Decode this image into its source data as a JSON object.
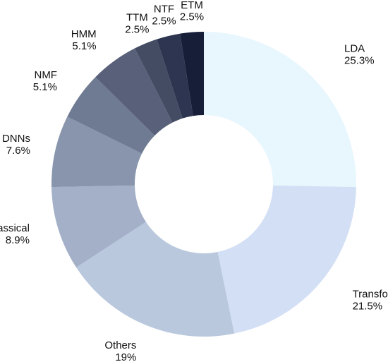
{
  "chart_data": {
    "type": "pie",
    "donut": true,
    "slices": [
      {
        "label": "LDA",
        "pct_text": "25.3%",
        "value": 25.3,
        "color": "#e8f6fd"
      },
      {
        "label": "Transformer",
        "pct_text": "21.5%",
        "value": 21.5,
        "color": "#d2dff5"
      },
      {
        "label": "Others",
        "pct_text": "19%",
        "value": 19.0,
        "color": "#bac8de"
      },
      {
        "label": "Classical",
        "pct_text": "8.9%",
        "value": 8.9,
        "color": "#a3b0c8"
      },
      {
        "label": "DNNs",
        "pct_text": "7.6%",
        "value": 7.6,
        "color": "#8895ac"
      },
      {
        "label": "NMF",
        "pct_text": "5.1%",
        "value": 5.1,
        "color": "#6f7b92"
      },
      {
        "label": "HMM",
        "pct_text": "5.1%",
        "value": 5.1,
        "color": "#586179"
      },
      {
        "label": "TTM",
        "pct_text": "2.5%",
        "value": 2.5,
        "color": "#434c63"
      },
      {
        "label": "NTF",
        "pct_text": "2.5%",
        "value": 2.5,
        "color": "#2d3550"
      },
      {
        "label": "ETM",
        "pct_text": "2.5%",
        "value": 2.5,
        "color": "#161e38"
      }
    ]
  }
}
